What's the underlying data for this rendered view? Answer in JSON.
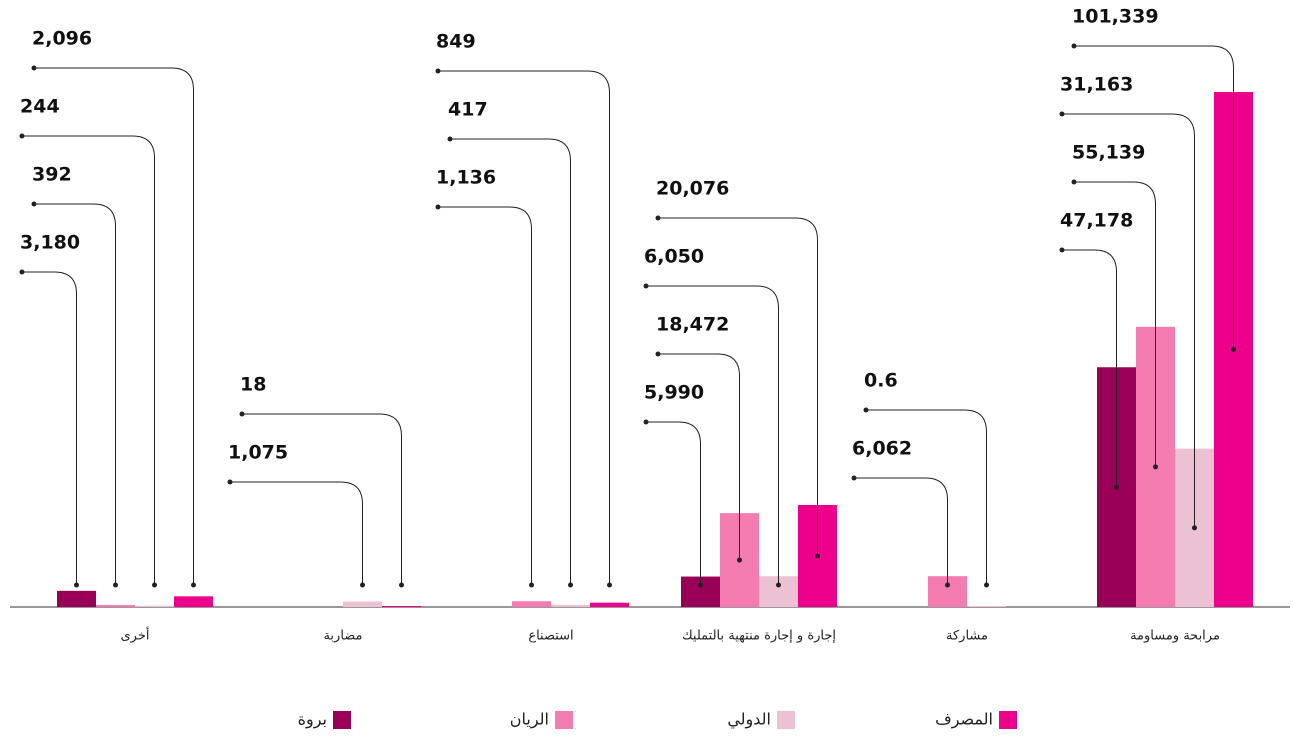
{
  "chart_data": {
    "type": "bar",
    "categories": [
      "أخرى",
      "مضاربة",
      "استصناع",
      "إجارة و إجارة منتهية بالتمليك",
      "مشاركة",
      "مرابحة ومساومة"
    ],
    "series": [
      {
        "name": "بروة",
        "color": "#9b0058",
        "values": [
          3180,
          null,
          null,
          5990,
          null,
          47178
        ],
        "value_labels": [
          "3,180",
          null,
          null,
          "5,990",
          null,
          "47,178"
        ]
      },
      {
        "name": "الريان",
        "color": "#f47cb0",
        "values": [
          392,
          null,
          1136,
          18472,
          6062,
          55139
        ],
        "value_labels": [
          "392",
          null,
          "1,136",
          "18,472",
          "6,062",
          "55,139"
        ]
      },
      {
        "name": "الدولي",
        "color": "#ecc1d3",
        "values": [
          244,
          1075,
          417,
          6050,
          0.6,
          31163
        ],
        "value_labels": [
          "244",
          "1,075",
          "417",
          "6,050",
          "0.6",
          "31,163"
        ]
      },
      {
        "name": "المصرف",
        "color": "#ec008c",
        "values": [
          2096,
          18,
          849,
          20076,
          null,
          101339
        ],
        "value_labels": [
          "2,096",
          "18",
          "849",
          "20,076",
          null,
          "101,339"
        ]
      }
    ],
    "ylim": [
      0,
      110000
    ],
    "legend": "bottom"
  }
}
